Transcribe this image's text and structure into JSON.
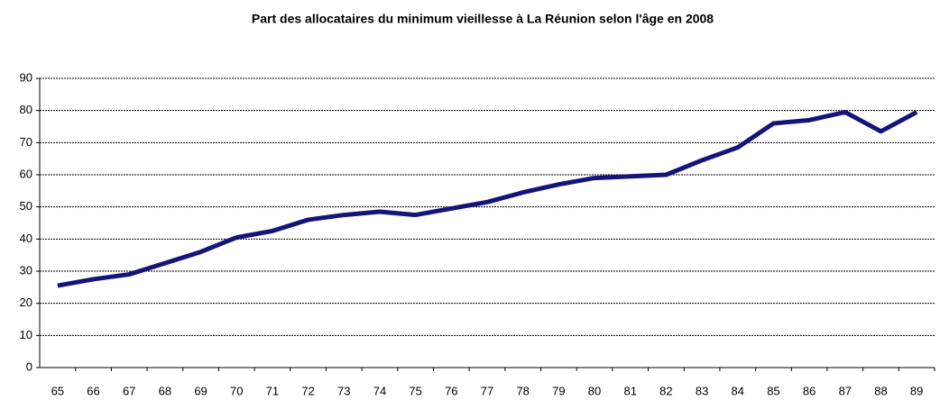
{
  "chart_data": {
    "type": "line",
    "title": "Part des allocataires du minimum vieillesse à La Réunion selon l'âge en 2008",
    "categories": [
      "65",
      "66",
      "67",
      "68",
      "69",
      "70",
      "71",
      "72",
      "73",
      "74",
      "75",
      "76",
      "77",
      "78",
      "79",
      "80",
      "81",
      "82",
      "83",
      "84",
      "85",
      "86",
      "87",
      "88",
      "89"
    ],
    "series": [
      {
        "name": null,
        "color": "#14147a",
        "values": [
          25.5,
          27.5,
          29,
          32.5,
          36,
          40.5,
          42.5,
          46,
          47.5,
          48.5,
          47.5,
          49.5,
          51.5,
          54.5,
          57,
          59,
          59.5,
          60,
          64.5,
          68.5,
          76,
          77,
          79.5,
          73.5,
          79.5
        ]
      }
    ],
    "ylim": [
      0,
      90
    ],
    "yticks": [
      0,
      10,
      20,
      30,
      40,
      50,
      60,
      70,
      80,
      90
    ],
    "grid": true
  }
}
